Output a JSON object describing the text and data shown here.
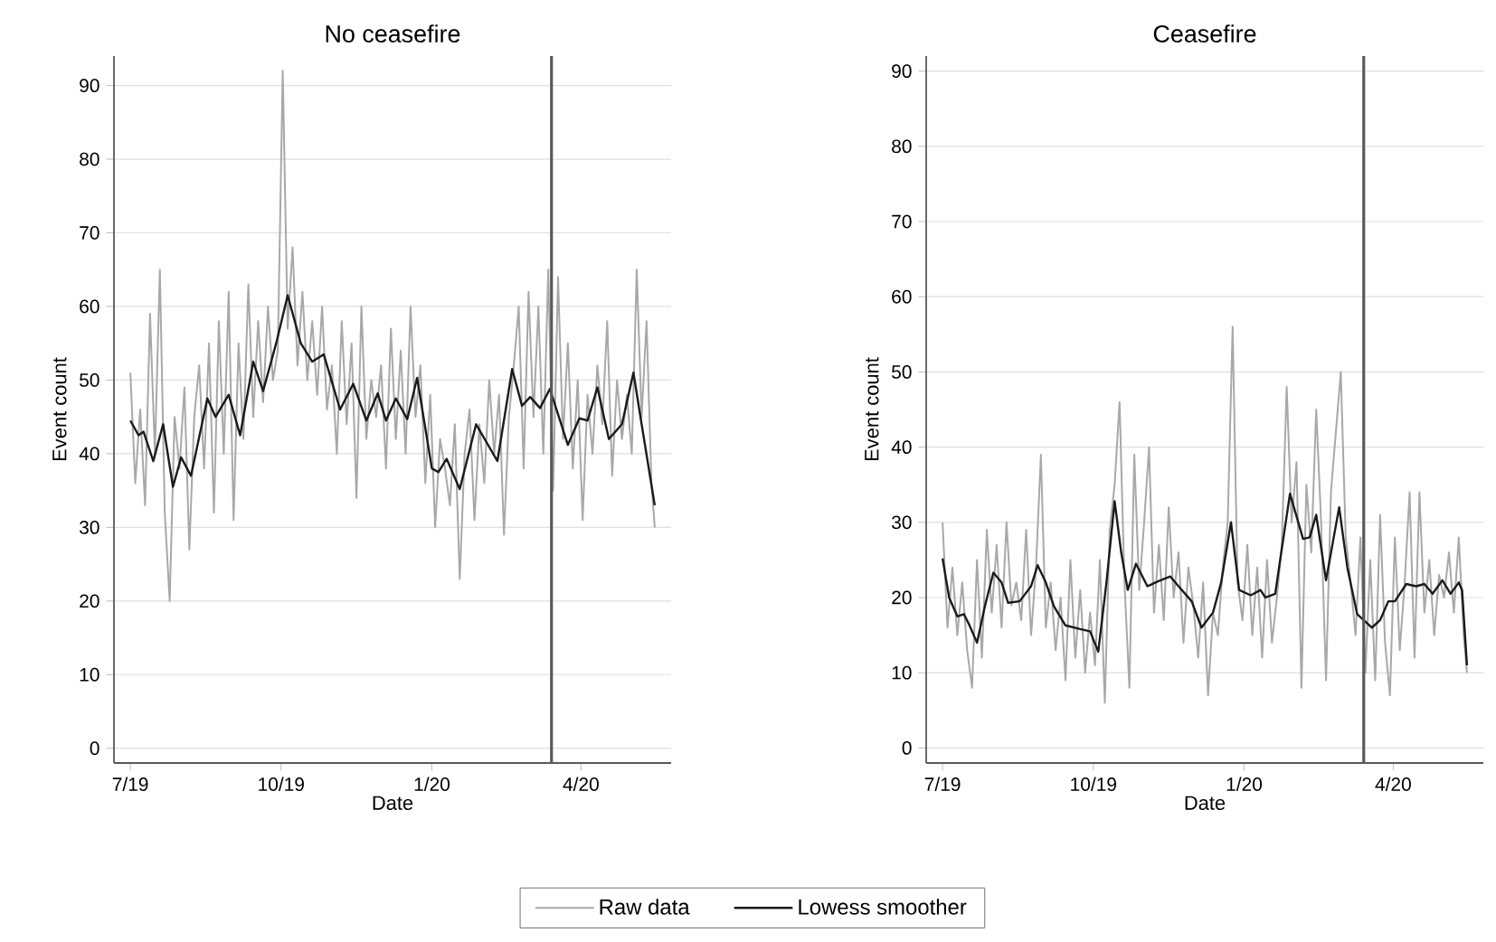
{
  "chart_data": [
    {
      "type": "line",
      "title": "No ceasefire",
      "xlabel": "Date",
      "ylabel": "Event count",
      "xlim": [
        "2019-06-21",
        "2020-05-26"
      ],
      "ylim": [
        -2,
        94
      ],
      "xticks": [
        {
          "value": "2019-07-01",
          "label": "7/19"
        },
        {
          "value": "2019-10-01",
          "label": "10/19"
        },
        {
          "value": "2020-01-01",
          "label": "1/20"
        },
        {
          "value": "2020-04-01",
          "label": "4/20"
        }
      ],
      "yticks": [
        0,
        10,
        20,
        30,
        40,
        50,
        60,
        70,
        80,
        90
      ],
      "grid": "y",
      "legend": "bottom",
      "ref_lines": [
        {
          "axis": "x",
          "value": "2020-03-14",
          "color": "#5a5a5a"
        }
      ],
      "x": [
        "2019-07-01",
        "2019-07-04",
        "2019-07-07",
        "2019-07-10",
        "2019-07-13",
        "2019-07-16",
        "2019-07-19",
        "2019-07-22",
        "2019-07-25",
        "2019-07-28",
        "2019-07-31",
        "2019-08-03",
        "2019-08-06",
        "2019-08-09",
        "2019-08-12",
        "2019-08-15",
        "2019-08-18",
        "2019-08-21",
        "2019-08-24",
        "2019-08-27",
        "2019-08-30",
        "2019-09-02",
        "2019-09-05",
        "2019-09-08",
        "2019-09-11",
        "2019-09-14",
        "2019-09-17",
        "2019-09-20",
        "2019-09-23",
        "2019-09-26",
        "2019-09-29",
        "2019-10-02",
        "2019-10-05",
        "2019-10-08",
        "2019-10-11",
        "2019-10-14",
        "2019-10-17",
        "2019-10-20",
        "2019-10-23",
        "2019-10-26",
        "2019-10-29",
        "2019-11-01",
        "2019-11-04",
        "2019-11-07",
        "2019-11-10",
        "2019-11-13",
        "2019-11-16",
        "2019-11-19",
        "2019-11-22",
        "2019-11-25",
        "2019-11-28",
        "2019-12-01",
        "2019-12-04",
        "2019-12-07",
        "2019-12-10",
        "2019-12-13",
        "2019-12-16",
        "2019-12-19",
        "2019-12-22",
        "2019-12-25",
        "2019-12-28",
        "2019-12-31",
        "2020-01-03",
        "2020-01-06",
        "2020-01-09",
        "2020-01-12",
        "2020-01-15",
        "2020-01-18",
        "2020-01-21",
        "2020-01-24",
        "2020-01-27",
        "2020-01-30",
        "2020-02-02",
        "2020-02-05",
        "2020-02-08",
        "2020-02-11",
        "2020-02-14",
        "2020-02-17",
        "2020-02-20",
        "2020-02-23",
        "2020-02-26",
        "2020-02-29",
        "2020-03-03",
        "2020-03-06",
        "2020-03-09",
        "2020-03-12",
        "2020-03-15",
        "2020-03-18",
        "2020-03-21",
        "2020-03-24",
        "2020-03-27",
        "2020-03-30",
        "2020-04-02",
        "2020-04-05",
        "2020-04-08",
        "2020-04-11",
        "2020-04-14",
        "2020-04-17",
        "2020-04-20",
        "2020-04-23",
        "2020-04-26",
        "2020-04-29",
        "2020-05-02",
        "2020-05-05",
        "2020-05-08",
        "2020-05-11",
        "2020-05-14",
        "2020-05-16"
      ],
      "series": [
        {
          "name": "Raw data",
          "color": "#a8a8a8",
          "values": [
            51,
            36,
            46,
            33,
            59,
            40,
            65,
            32,
            20,
            45,
            38,
            49,
            27,
            45,
            52,
            38,
            55,
            32,
            58,
            40,
            62,
            31,
            55,
            42,
            63,
            45,
            58,
            47,
            60,
            50,
            54,
            92,
            57,
            68,
            52,
            62,
            50,
            58,
            48,
            60,
            46,
            52,
            40,
            58,
            44,
            55,
            34,
            60,
            42,
            50,
            45,
            52,
            38,
            57,
            42,
            54,
            40,
            60,
            45,
            52,
            36,
            48,
            30,
            42,
            38,
            33,
            44,
            23,
            40,
            46,
            31,
            44,
            36,
            50,
            40,
            48,
            29,
            45,
            52,
            60,
            38,
            62,
            45,
            60,
            40,
            65,
            35,
            64,
            42,
            55,
            38,
            50,
            31,
            48,
            40,
            52,
            44,
            58,
            37,
            50,
            42,
            48,
            40,
            65,
            45,
            58,
            36,
            30
          ]
        },
        {
          "name": "Lowess smoother",
          "color": "#1a1a1a",
          "x": [
            "2019-07-01",
            "2019-07-06",
            "2019-07-09",
            "2019-07-15",
            "2019-07-21",
            "2019-07-27",
            "2019-08-01",
            "2019-08-07",
            "2019-08-17",
            "2019-08-22",
            "2019-08-30",
            "2019-09-06",
            "2019-09-14",
            "2019-09-20",
            "2019-09-28",
            "2019-10-05",
            "2019-10-13",
            "2019-10-20",
            "2019-10-27",
            "2019-11-06",
            "2019-11-14",
            "2019-11-22",
            "2019-11-29",
            "2019-12-04",
            "2019-12-10",
            "2019-12-17",
            "2019-12-23",
            "2020-01-01",
            "2020-01-05",
            "2020-01-10",
            "2020-01-18",
            "2020-01-28",
            "2020-02-10",
            "2020-02-19",
            "2020-02-25",
            "2020-03-01",
            "2020-03-07",
            "2020-03-13",
            "2020-03-24",
            "2020-03-31",
            "2020-04-05",
            "2020-04-11",
            "2020-04-18",
            "2020-04-26",
            "2020-05-03",
            "2020-05-08",
            "2020-05-16"
          ],
          "values": [
            44.5,
            42.5,
            43,
            39,
            44,
            35.5,
            39.5,
            37,
            47.5,
            45,
            48,
            42.5,
            52.5,
            48.5,
            55,
            61.5,
            55,
            52.5,
            53.5,
            46,
            49.5,
            44.5,
            48.2,
            44.5,
            47.5,
            44.7,
            50.3,
            38,
            37.5,
            39.3,
            35.2,
            44,
            39,
            51.5,
            46.5,
            47.7,
            46.2,
            48.8,
            41.2,
            44.8,
            44.5,
            49,
            42,
            44,
            51,
            44,
            33
          ]
        }
      ]
    },
    {
      "type": "line",
      "title": "Ceasefire",
      "xlabel": "Date",
      "ylabel": "Event count",
      "xlim": [
        "2019-06-21",
        "2020-05-26"
      ],
      "ylim": [
        -2,
        92
      ],
      "xticks": [
        {
          "value": "2019-07-01",
          "label": "7/19"
        },
        {
          "value": "2019-10-01",
          "label": "10/19"
        },
        {
          "value": "2020-01-01",
          "label": "1/20"
        },
        {
          "value": "2020-04-01",
          "label": "4/20"
        }
      ],
      "yticks": [
        0,
        10,
        20,
        30,
        40,
        50,
        60,
        70,
        80,
        90
      ],
      "grid": "y",
      "ref_lines": [
        {
          "axis": "x",
          "value": "2020-03-14",
          "color": "#5a5a5a"
        }
      ],
      "x": [
        "2019-07-01",
        "2019-07-04",
        "2019-07-07",
        "2019-07-10",
        "2019-07-13",
        "2019-07-16",
        "2019-07-19",
        "2019-07-22",
        "2019-07-25",
        "2019-07-28",
        "2019-07-31",
        "2019-08-03",
        "2019-08-06",
        "2019-08-09",
        "2019-08-12",
        "2019-08-15",
        "2019-08-18",
        "2019-08-21",
        "2019-08-24",
        "2019-08-27",
        "2019-08-30",
        "2019-09-02",
        "2019-09-05",
        "2019-09-08",
        "2019-09-11",
        "2019-09-14",
        "2019-09-17",
        "2019-09-20",
        "2019-09-23",
        "2019-09-26",
        "2019-09-29",
        "2019-10-02",
        "2019-10-05",
        "2019-10-08",
        "2019-10-11",
        "2019-10-14",
        "2019-10-17",
        "2019-10-20",
        "2019-10-23",
        "2019-10-26",
        "2019-10-29",
        "2019-11-01",
        "2019-11-04",
        "2019-11-07",
        "2019-11-10",
        "2019-11-13",
        "2019-11-16",
        "2019-11-19",
        "2019-11-22",
        "2019-11-25",
        "2019-11-28",
        "2019-12-01",
        "2019-12-04",
        "2019-12-07",
        "2019-12-10",
        "2019-12-13",
        "2019-12-16",
        "2019-12-19",
        "2019-12-22",
        "2019-12-25",
        "2019-12-28",
        "2019-12-31",
        "2020-01-03",
        "2020-01-06",
        "2020-01-09",
        "2020-01-12",
        "2020-01-15",
        "2020-01-18",
        "2020-01-21",
        "2020-01-24",
        "2020-01-27",
        "2020-01-30",
        "2020-02-02",
        "2020-02-05",
        "2020-02-08",
        "2020-02-11",
        "2020-02-14",
        "2020-02-17",
        "2020-02-20",
        "2020-02-23",
        "2020-02-26",
        "2020-02-29",
        "2020-03-03",
        "2020-03-06",
        "2020-03-09",
        "2020-03-12",
        "2020-03-15",
        "2020-03-18",
        "2020-03-21",
        "2020-03-24",
        "2020-03-27",
        "2020-03-30",
        "2020-04-02",
        "2020-04-05",
        "2020-04-08",
        "2020-04-11",
        "2020-04-14",
        "2020-04-17",
        "2020-04-20",
        "2020-04-23",
        "2020-04-26",
        "2020-04-29",
        "2020-05-02",
        "2020-05-05",
        "2020-05-08",
        "2020-05-11",
        "2020-05-14",
        "2020-05-16"
      ],
      "series": [
        {
          "color": "#a8a8a8",
          "values": [
            30,
            16,
            24,
            15,
            22,
            13,
            8,
            25,
            12,
            29,
            18,
            27,
            16,
            30,
            19,
            22,
            17,
            29,
            15,
            24,
            39,
            16,
            22,
            13,
            20,
            9,
            25,
            12,
            21,
            10,
            18,
            11,
            25,
            6,
            29,
            35,
            46,
            22,
            8,
            39,
            21,
            30,
            40,
            18,
            27,
            17,
            32,
            20,
            26,
            14,
            24,
            19,
            12,
            22,
            7,
            18,
            15,
            24,
            30,
            56,
            22,
            17,
            27,
            15,
            24,
            12,
            25,
            14,
            20,
            27,
            48,
            30,
            38,
            8,
            35,
            26,
            45,
            30,
            9,
            34,
            42,
            50,
            28,
            22,
            15,
            28,
            10,
            25,
            9,
            31,
            14,
            7,
            28,
            13,
            22,
            34,
            12,
            34,
            18,
            25,
            15,
            23,
            20,
            26,
            18,
            28,
            15,
            10
          ]
        },
        {
          "color": "#1a1a1a",
          "x": [
            "2019-07-01",
            "2019-07-05",
            "2019-07-10",
            "2019-07-14",
            "2019-07-17",
            "2019-07-22",
            "2019-07-27",
            "2019-08-01",
            "2019-08-06",
            "2019-08-10",
            "2019-08-17",
            "2019-08-24",
            "2019-08-28",
            "2019-09-02",
            "2019-09-07",
            "2019-09-14",
            "2019-09-23",
            "2019-09-29",
            "2019-10-04",
            "2019-10-09",
            "2019-10-14",
            "2019-10-18",
            "2019-10-22",
            "2019-10-27",
            "2019-11-03",
            "2019-11-10",
            "2019-11-17",
            "2019-11-22",
            "2019-11-30",
            "2019-12-06",
            "2019-12-13",
            "2019-12-18",
            "2019-12-24",
            "2019-12-29",
            "2020-01-05",
            "2020-01-11",
            "2020-01-14",
            "2020-01-20",
            "2020-01-23",
            "2020-01-29",
            "2020-02-06",
            "2020-02-10",
            "2020-02-14",
            "2020-02-20",
            "2020-02-28",
            "2020-03-04",
            "2020-03-10",
            "2020-03-15",
            "2020-03-19",
            "2020-03-24",
            "2020-03-29",
            "2020-04-02",
            "2020-04-09",
            "2020-04-15",
            "2020-04-20",
            "2020-04-25",
            "2020-05-01",
            "2020-05-06",
            "2020-05-11",
            "2020-05-13",
            "2020-05-16"
          ],
          "values": [
            25.2,
            20,
            17.5,
            17.8,
            16.5,
            14,
            19,
            23.3,
            22,
            19.3,
            19.5,
            21.5,
            24.3,
            22,
            18.8,
            16.3,
            15.8,
            15.5,
            12.8,
            22,
            32.8,
            26,
            21,
            24.5,
            21.5,
            22.2,
            22.8,
            21.5,
            19.5,
            16,
            18,
            22,
            30,
            21,
            20.3,
            21,
            20,
            20.5,
            25,
            33.8,
            27.8,
            28,
            31,
            22.3,
            32,
            24,
            17.8,
            16.8,
            16,
            17,
            19.5,
            19.5,
            21.8,
            21.5,
            21.8,
            20.5,
            22.3,
            20.5,
            22,
            21,
            11
          ]
        }
      ]
    }
  ]
}
